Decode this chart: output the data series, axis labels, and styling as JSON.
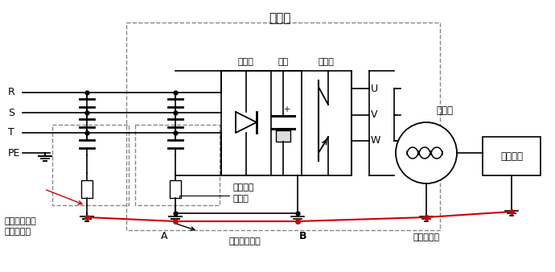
{
  "bg_color": "#ffffff",
  "line_color": "#000000",
  "red_color": "#cc0000",
  "dash_color": "#888888",
  "labels": {
    "vfd_title": "变频器",
    "R": "R",
    "S": "S",
    "T": "T",
    "PE": "PE",
    "U": "U",
    "V": "V",
    "W": "W",
    "rectifier": "整流桥",
    "capacitor": "电容",
    "inverter": "逆变桥",
    "filter": "感应浪涌\n滤波器",
    "motor": "电动机",
    "machinery": "机械设备",
    "added_filter_line1": "增加的感应电",
    "added_filter_line2": "浪涌滤波器",
    "vfd_ground": "变频器接地端",
    "motor_ground": "电机接地端",
    "A": "A",
    "B": "B"
  }
}
